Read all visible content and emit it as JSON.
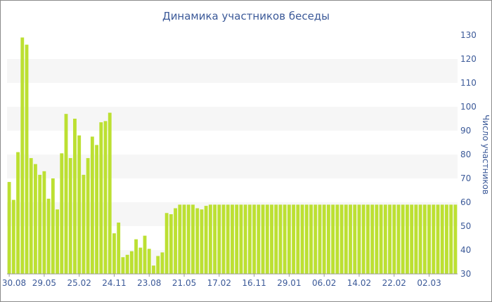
{
  "chart_data": {
    "type": "bar",
    "title": "Динамика участников беседы",
    "xlabel": "",
    "ylabel": "Число участников",
    "ylim": [
      30,
      130
    ],
    "yticks": [
      30,
      40,
      50,
      60,
      70,
      80,
      90,
      100,
      110,
      120,
      130
    ],
    "y_axis_position": "right",
    "grid": "alternating horizontal bands",
    "bar_color": "#bce032",
    "band_color": "#f6f6f6",
    "text_color": "#3b5998",
    "xtick_labels": [
      {
        "label": "30.08",
        "index": 0
      },
      {
        "label": "29.05",
        "index": 8
      },
      {
        "label": "25.02",
        "index": 16
      },
      {
        "label": "24.11",
        "index": 24
      },
      {
        "label": "23.08",
        "index": 32
      },
      {
        "label": "21.05",
        "index": 40
      },
      {
        "label": "17.02",
        "index": 48
      },
      {
        "label": "16.11",
        "index": 56
      },
      {
        "label": "29.01",
        "index": 64
      },
      {
        "label": "06.02",
        "index": 72
      },
      {
        "label": "14.02",
        "index": 80
      },
      {
        "label": "22.02",
        "index": 88
      },
      {
        "label": "02.03",
        "index": 96
      }
    ],
    "values": [
      68.5,
      61,
      81,
      129,
      126,
      78.5,
      76,
      71.5,
      73,
      61.5,
      70,
      57,
      80.5,
      97,
      78.5,
      95,
      88,
      71.5,
      78.5,
      87.5,
      84,
      93.5,
      94,
      97.5,
      47,
      51.5,
      37,
      38,
      39.5,
      44.5,
      41,
      46,
      40.5,
      33.5,
      37.5,
      39,
      55.5,
      55,
      57.5,
      59,
      59,
      59,
      59,
      57.5,
      57,
      58.5,
      59,
      59,
      59,
      59,
      59,
      59,
      59,
      59,
      59,
      59,
      59,
      59,
      59,
      59,
      59,
      59,
      59,
      59,
      59,
      59,
      59,
      59,
      59,
      59,
      59,
      59,
      59,
      59,
      59,
      59,
      59,
      59,
      59,
      59,
      59,
      59,
      59,
      59,
      59,
      59,
      59,
      59,
      59,
      59,
      59,
      59,
      59,
      59,
      59,
      59,
      59,
      59,
      59,
      59,
      59,
      59,
      59
    ]
  }
}
